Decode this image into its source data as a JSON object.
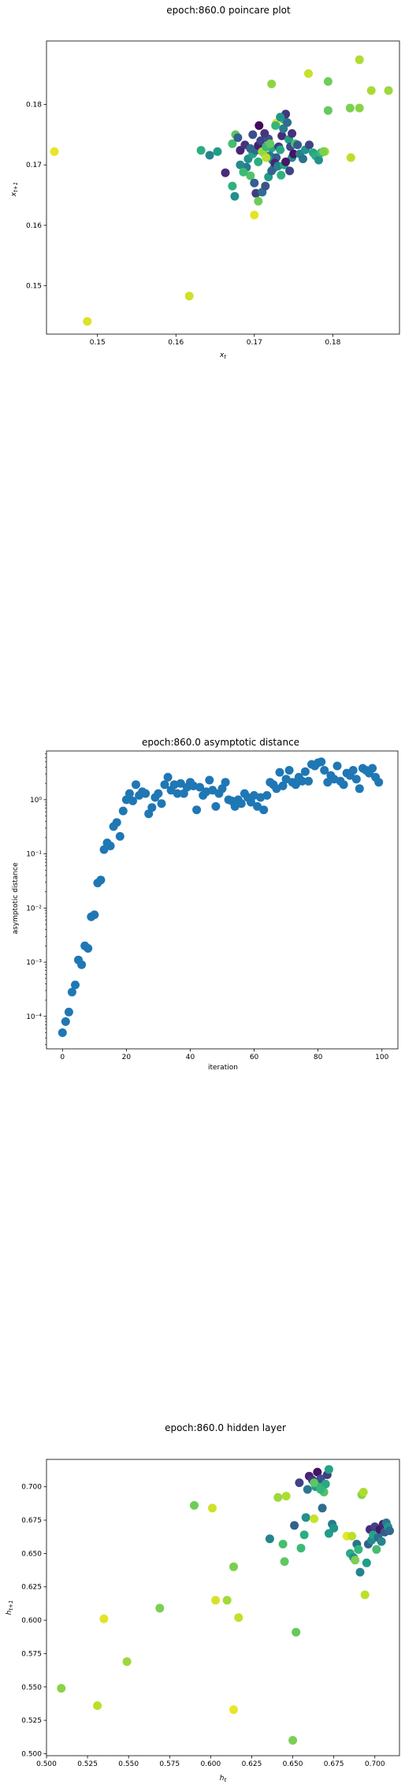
{
  "chart_data": [
    {
      "type": "scatter",
      "title": "epoch:860.0 poincare plot",
      "xlabel": "x_t",
      "ylabel": "x_{t+1}",
      "xlim": [
        0.1435,
        0.1885
      ],
      "ylim": [
        0.142,
        0.1905
      ],
      "xticks": [
        "0.15",
        "0.16",
        "0.17",
        "0.18"
      ],
      "xtick_values": [
        0.15,
        0.16,
        0.17,
        0.18
      ],
      "yticks": [
        "0.15",
        "0.16",
        "0.17",
        "0.18"
      ],
      "ytick_values": [
        0.15,
        0.16,
        0.17,
        0.18
      ],
      "y_scale": "linear",
      "grid": false,
      "colormap": "viridis",
      "points": [
        [
          0.1445,
          0.1722,
          0.97
        ],
        [
          0.1487,
          0.1441,
          0.95
        ],
        [
          0.1617,
          0.1483,
          0.93
        ],
        [
          0.17,
          0.1617,
          0.96
        ],
        [
          0.1823,
          0.1712,
          0.9
        ],
        [
          0.1834,
          0.1874,
          0.88
        ],
        [
          0.1849,
          0.1823,
          0.87
        ],
        [
          0.1871,
          0.1823,
          0.85
        ],
        [
          0.1834,
          0.1794,
          0.82
        ],
        [
          0.1822,
          0.1794,
          0.8
        ],
        [
          0.1794,
          0.1838,
          0.78
        ],
        [
          0.1769,
          0.1851,
          0.92
        ],
        [
          0.1722,
          0.1834,
          0.83
        ],
        [
          0.1794,
          0.179,
          0.76
        ],
        [
          0.1728,
          0.1769,
          0.94
        ],
        [
          0.179,
          0.1722,
          0.89
        ],
        [
          0.1722,
          0.1728,
          0.6
        ],
        [
          0.1653,
          0.1722,
          0.55
        ],
        [
          0.1632,
          0.1724,
          0.62
        ],
        [
          0.1643,
          0.1716,
          0.45
        ],
        [
          0.1672,
          0.1735,
          0.7
        ],
        [
          0.1676,
          0.175,
          0.74
        ],
        [
          0.1679,
          0.1745,
          0.3
        ],
        [
          0.1682,
          0.1724,
          0.1
        ],
        [
          0.1688,
          0.1733,
          0.15
        ],
        [
          0.1692,
          0.171,
          0.5
        ],
        [
          0.1698,
          0.1718,
          0.58
        ],
        [
          0.1702,
          0.1724,
          0.35
        ],
        [
          0.1705,
          0.1732,
          0.08
        ],
        [
          0.1708,
          0.174,
          0.2
        ],
        [
          0.171,
          0.1722,
          0.86
        ],
        [
          0.1712,
          0.172,
          0.84
        ],
        [
          0.1715,
          0.173,
          0.68
        ],
        [
          0.1718,
          0.1743,
          0.25
        ],
        [
          0.172,
          0.1715,
          0.4
        ],
        [
          0.1723,
          0.1708,
          0.52
        ],
        [
          0.1725,
          0.1695,
          0.46
        ],
        [
          0.1728,
          0.1712,
          0.3
        ],
        [
          0.1731,
          0.173,
          0.18
        ],
        [
          0.1733,
          0.1725,
          0.6
        ],
        [
          0.1735,
          0.1748,
          0.12
        ],
        [
          0.1737,
          0.176,
          0.42
        ],
        [
          0.1738,
          0.1775,
          0.65
        ],
        [
          0.174,
          0.1784,
          0.15
        ],
        [
          0.1742,
          0.177,
          0.35
        ],
        [
          0.1744,
          0.1742,
          0.55
        ],
        [
          0.1746,
          0.173,
          0.22
        ],
        [
          0.1748,
          0.1712,
          0.48
        ],
        [
          0.175,
          0.1718,
          0.05
        ],
        [
          0.1752,
          0.1735,
          0.72
        ],
        [
          0.1755,
          0.1733,
          0.28
        ],
        [
          0.1758,
          0.1718,
          0.44
        ],
        [
          0.1762,
          0.171,
          0.38
        ],
        [
          0.1765,
          0.1725,
          0.52
        ],
        [
          0.177,
          0.1733,
          0.2
        ],
        [
          0.1775,
          0.172,
          0.58
        ],
        [
          0.1778,
          0.1715,
          0.62
        ],
        [
          0.1782,
          0.1708,
          0.5
        ],
        [
          0.1785,
          0.172,
          0.66
        ],
        [
          0.1788,
          0.1722,
          0.8
        ],
        [
          0.169,
          0.1696,
          0.4
        ],
        [
          0.1695,
          0.1682,
          0.72
        ],
        [
          0.17,
          0.167,
          0.3
        ],
        [
          0.1702,
          0.1653,
          0.18
        ],
        [
          0.1705,
          0.164,
          0.78
        ],
        [
          0.171,
          0.1655,
          0.36
        ],
        [
          0.1714,
          0.1665,
          0.26
        ],
        [
          0.1718,
          0.168,
          0.55
        ],
        [
          0.1722,
          0.169,
          0.32
        ],
        [
          0.1726,
          0.1703,
          0.1
        ],
        [
          0.173,
          0.1698,
          0.44
        ],
        [
          0.1734,
          0.1683,
          0.64
        ],
        [
          0.1738,
          0.17,
          0.58
        ],
        [
          0.1663,
          0.1687,
          0.12
        ],
        [
          0.1672,
          0.1665,
          0.64
        ],
        [
          0.1675,
          0.1648,
          0.5
        ],
        [
          0.1682,
          0.17,
          0.48
        ],
        [
          0.1686,
          0.1688,
          0.68
        ],
        [
          0.174,
          0.1705,
          0.06
        ],
        [
          0.1745,
          0.169,
          0.2
        ],
        [
          0.1715,
          0.1712,
          0.9
        ],
        [
          0.172,
          0.1735,
          0.76
        ],
        [
          0.1727,
          0.1765,
          0.66
        ],
        [
          0.1733,
          0.1779,
          0.52
        ],
        [
          0.1698,
          0.175,
          0.24
        ],
        [
          0.1706,
          0.1765,
          0.02
        ],
        [
          0.1713,
          0.1752,
          0.16
        ],
        [
          0.1748,
          0.1752,
          0.14
        ],
        [
          0.1695,
          0.1727,
          0.34
        ],
        [
          0.1705,
          0.1705,
          0.62
        ]
      ]
    },
    {
      "type": "scatter",
      "title": "epoch:860.0 asymptotic distance",
      "xlabel": "iteration",
      "ylabel": "asymptotic distance",
      "xlim": [
        -5,
        105
      ],
      "y_scale": "log",
      "ylim_log10": [
        -4.6,
        0.9
      ],
      "xticks": [
        "0",
        "20",
        "40",
        "60",
        "80",
        "100"
      ],
      "xtick_values": [
        0,
        20,
        40,
        60,
        80,
        100
      ],
      "yticks": [
        "10⁻⁴",
        "10⁻³",
        "10⁻²",
        "10⁻¹",
        "10⁰"
      ],
      "ytick_log10": [
        -4,
        -3,
        -2,
        -1,
        0
      ],
      "grid": false,
      "color": "#1f77b4",
      "x": [
        0,
        1,
        2,
        3,
        4,
        5,
        6,
        7,
        8,
        9,
        10,
        11,
        12,
        13,
        14,
        15,
        16,
        17,
        18,
        19,
        20,
        21,
        22,
        23,
        24,
        25,
        26,
        27,
        28,
        29,
        30,
        31,
        32,
        33,
        34,
        35,
        36,
        37,
        38,
        39,
        40,
        41,
        42,
        43,
        44,
        45,
        46,
        47,
        48,
        49,
        50,
        51,
        52,
        53,
        54,
        55,
        56,
        57,
        58,
        59,
        60,
        61,
        62,
        63,
        64,
        65,
        66,
        67,
        68,
        69,
        70,
        71,
        72,
        73,
        74,
        75,
        76,
        77,
        78,
        79,
        80,
        81,
        82,
        83,
        84,
        85,
        86,
        87,
        88,
        89,
        90,
        91,
        92,
        93,
        94,
        95,
        96,
        97,
        98,
        99
      ],
      "y": [
        5e-05,
        8e-05,
        0.00012,
        0.00028,
        0.00038,
        0.0011,
        0.0009,
        0.002,
        0.0018,
        0.0069,
        0.0075,
        0.029,
        0.033,
        0.12,
        0.16,
        0.14,
        0.32,
        0.38,
        0.21,
        0.62,
        1.0,
        1.3,
        0.95,
        1.9,
        1.2,
        1.4,
        1.3,
        0.55,
        0.72,
        1.1,
        1.3,
        0.85,
        1.9,
        2.6,
        1.5,
        1.9,
        1.3,
        2.0,
        1.3,
        1.7,
        2.1,
        1.8,
        0.65,
        1.7,
        1.2,
        1.4,
        2.3,
        1.5,
        0.75,
        1.3,
        1.6,
        2.1,
        1.0,
        0.95,
        0.75,
        1.0,
        0.85,
        1.3,
        1.1,
        0.9,
        1.2,
        0.75,
        1.1,
        0.65,
        1.2,
        2.1,
        1.9,
        1.6,
        3.2,
        1.8,
        2.4,
        3.5,
        2.1,
        1.9,
        2.6,
        2.2,
        3.3,
        2.2,
        4.5,
        4.2,
        4.8,
        5.0,
        3.5,
        2.1,
        2.8,
        2.4,
        4.2,
        2.2,
        1.9,
        3.1,
        2.8,
        3.5,
        2.4,
        1.6,
        3.8,
        3.5,
        3.1,
        3.8,
        2.6,
        2.1
      ]
    },
    {
      "type": "scatter",
      "title": "epoch:860.0 hidden layer",
      "xlabel": "h_t",
      "ylabel": "h_{t+1}",
      "xlim": [
        0.5,
        0.715
      ],
      "ylim": [
        0.4985,
        0.7205
      ],
      "xticks": [
        "0.500",
        "0.525",
        "0.550",
        "0.575",
        "0.600",
        "0.625",
        "0.650",
        "0.675",
        "0.700"
      ],
      "xtick_values": [
        0.5,
        0.525,
        0.55,
        0.575,
        0.6,
        0.625,
        0.65,
        0.675,
        0.7
      ],
      "yticks": [
        "0.500",
        "0.525",
        "0.550",
        "0.575",
        "0.600",
        "0.625",
        "0.650",
        "0.675",
        "0.700"
      ],
      "ytick_values": [
        0.5,
        0.525,
        0.55,
        0.575,
        0.6,
        0.625,
        0.65,
        0.675,
        0.7
      ],
      "y_scale": "linear",
      "grid": false,
      "colormap": "viridis",
      "points": [
        [
          0.509,
          0.549,
          0.82
        ],
        [
          0.531,
          0.536,
          0.9
        ],
        [
          0.535,
          0.601,
          0.96
        ],
        [
          0.549,
          0.569,
          0.85
        ],
        [
          0.569,
          0.609,
          0.8
        ],
        [
          0.59,
          0.686,
          0.78
        ],
        [
          0.601,
          0.684,
          0.93
        ],
        [
          0.603,
          0.615,
          0.94
        ],
        [
          0.61,
          0.615,
          0.86
        ],
        [
          0.614,
          0.64,
          0.8
        ],
        [
          0.614,
          0.533,
          0.97
        ],
        [
          0.617,
          0.602,
          0.91
        ],
        [
          0.636,
          0.661,
          0.45
        ],
        [
          0.641,
          0.692,
          0.85
        ],
        [
          0.644,
          0.657,
          0.7
        ],
        [
          0.645,
          0.644,
          0.75
        ],
        [
          0.646,
          0.693,
          0.88
        ],
        [
          0.65,
          0.51,
          0.8
        ],
        [
          0.652,
          0.591,
          0.76
        ],
        [
          0.651,
          0.671,
          0.3
        ],
        [
          0.654,
          0.703,
          0.2
        ],
        [
          0.655,
          0.654,
          0.68
        ],
        [
          0.657,
          0.664,
          0.62
        ],
        [
          0.658,
          0.677,
          0.5
        ],
        [
          0.659,
          0.698,
          0.4
        ],
        [
          0.66,
          0.708,
          0.1
        ],
        [
          0.662,
          0.705,
          0.15
        ],
        [
          0.663,
          0.676,
          0.92
        ],
        [
          0.664,
          0.7,
          0.55
        ],
        [
          0.665,
          0.711,
          0.05
        ],
        [
          0.666,
          0.701,
          0.65
        ],
        [
          0.667,
          0.706,
          0.25
        ],
        [
          0.668,
          0.684,
          0.35
        ],
        [
          0.669,
          0.696,
          0.72
        ],
        [
          0.67,
          0.702,
          0.6
        ],
        [
          0.671,
          0.709,
          0.18
        ],
        [
          0.672,
          0.665,
          0.55
        ],
        [
          0.672,
          0.713,
          0.58
        ],
        [
          0.674,
          0.672,
          0.42
        ],
        [
          0.675,
          0.669,
          0.52
        ],
        [
          0.683,
          0.663,
          0.97
        ],
        [
          0.685,
          0.65,
          0.62
        ],
        [
          0.687,
          0.647,
          0.5
        ],
        [
          0.689,
          0.657,
          0.38
        ],
        [
          0.69,
          0.653,
          0.66
        ],
        [
          0.691,
          0.636,
          0.45
        ],
        [
          0.692,
          0.694,
          0.82
        ],
        [
          0.693,
          0.696,
          0.88
        ],
        [
          0.694,
          0.619,
          0.9
        ],
        [
          0.695,
          0.643,
          0.55
        ],
        [
          0.696,
          0.657,
          0.3
        ],
        [
          0.697,
          0.668,
          0.12
        ],
        [
          0.698,
          0.66,
          0.48
        ],
        [
          0.699,
          0.664,
          0.58
        ],
        [
          0.7,
          0.67,
          0.2
        ],
        [
          0.701,
          0.653,
          0.7
        ],
        [
          0.702,
          0.662,
          0.36
        ],
        [
          0.703,
          0.668,
          0.06
        ],
        [
          0.704,
          0.659,
          0.46
        ],
        [
          0.705,
          0.672,
          0.1
        ],
        [
          0.706,
          0.666,
          0.28
        ],
        [
          0.707,
          0.673,
          0.4
        ],
        [
          0.708,
          0.67,
          0.52
        ],
        [
          0.709,
          0.667,
          0.34
        ],
        [
          0.686,
          0.663,
          0.9
        ],
        [
          0.688,
          0.645,
          0.8
        ],
        [
          0.663,
          0.703,
          0.74
        ],
        [
          0.667,
          0.698,
          0.66
        ]
      ]
    }
  ]
}
